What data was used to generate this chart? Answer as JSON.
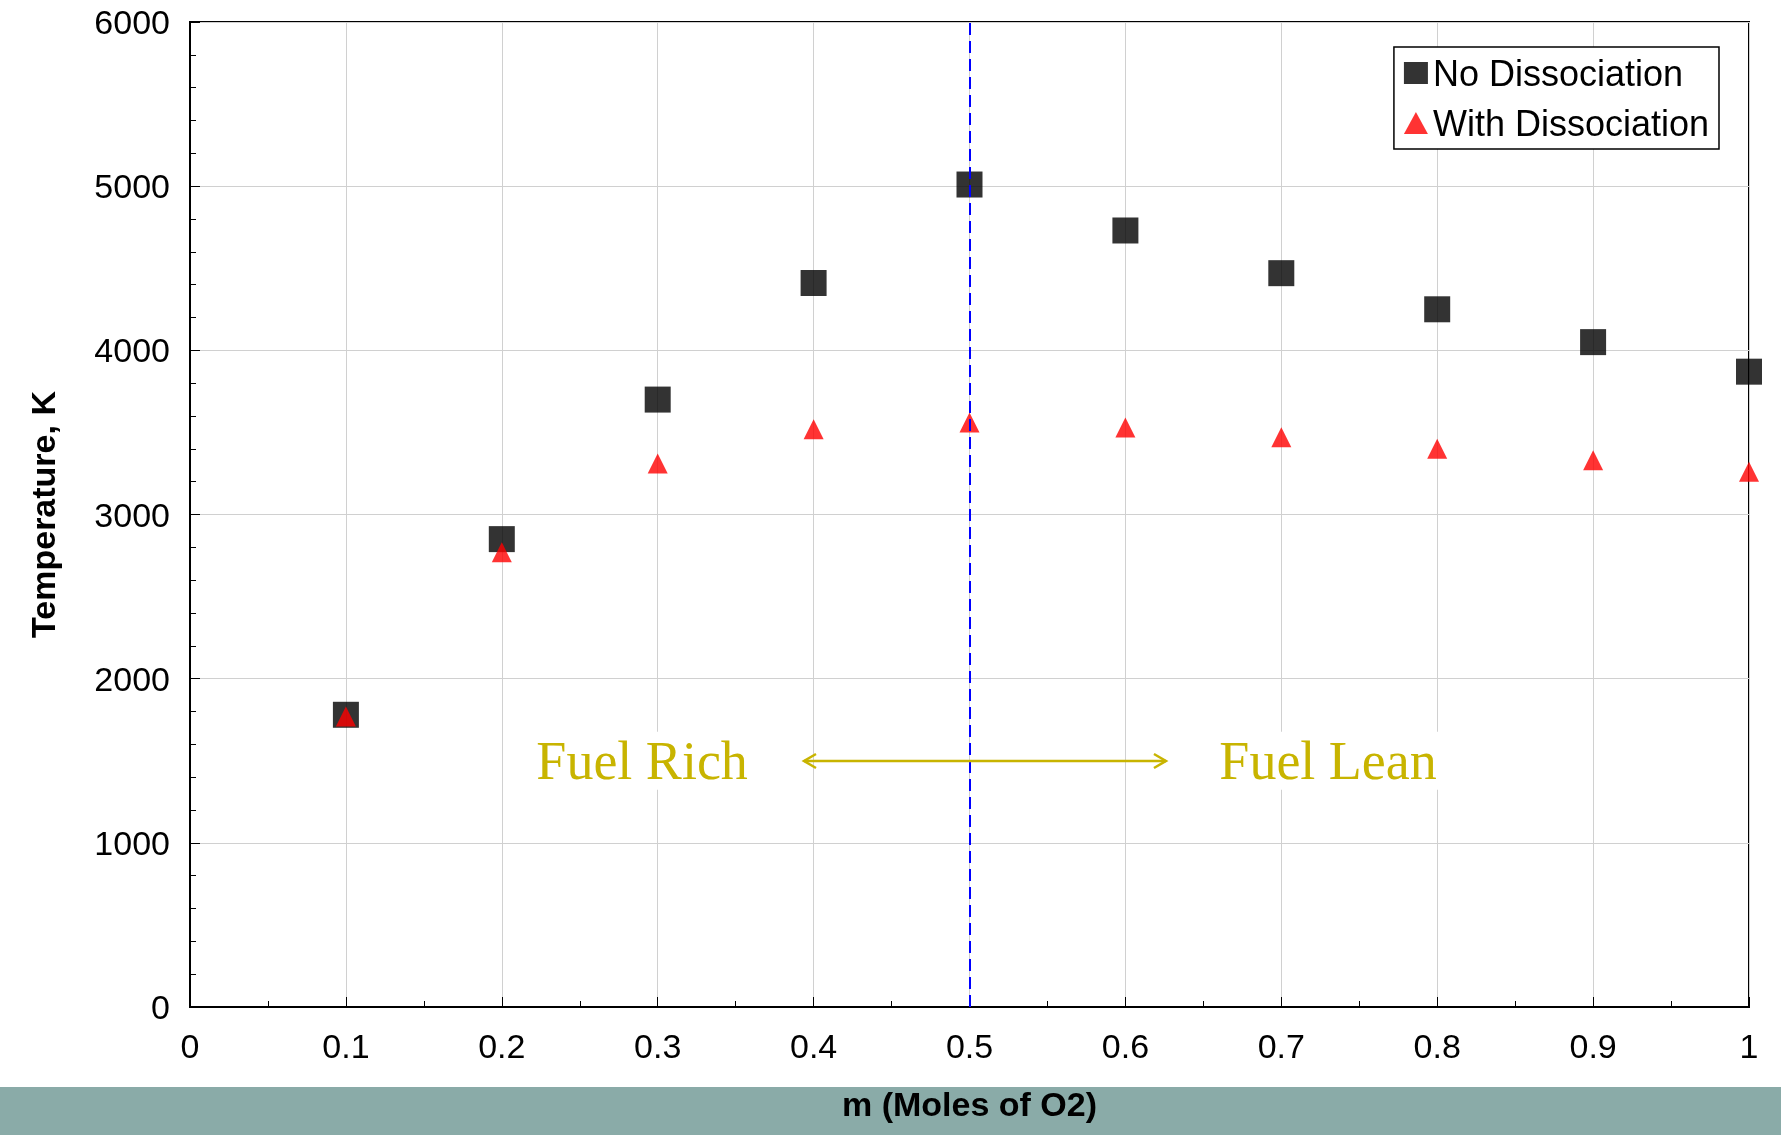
{
  "chart_data": {
    "type": "scatter",
    "xlabel": "m (Moles of O2)",
    "ylabel": "Temperature, K",
    "x": [
      0.1,
      0.2,
      0.3,
      0.4,
      0.5,
      0.6,
      0.7,
      0.8,
      0.9,
      1.0
    ],
    "series": [
      {
        "name": "No Dissociation",
        "color": "#000000",
        "marker": "square",
        "values": [
          1780,
          2850,
          3700,
          4410,
          5010,
          4730,
          4470,
          4250,
          4050,
          3870
        ]
      },
      {
        "name": "With Dissociation",
        "color": "#ff0000",
        "marker": "triangle",
        "values": [
          1770,
          2770,
          3310,
          3520,
          3560,
          3530,
          3470,
          3400,
          3330,
          3260
        ]
      }
    ],
    "xlim": [
      0,
      1
    ],
    "xticks": [
      0,
      0.1,
      0.2,
      0.3,
      0.4,
      0.5,
      0.6,
      0.7,
      0.8,
      0.9,
      1
    ],
    "ylim": [
      0,
      6000
    ],
    "yticks": [
      0,
      1000,
      2000,
      3000,
      4000,
      5000,
      6000
    ],
    "grid": true,
    "legend": "top right",
    "ref_lines": [
      {
        "axis": "x",
        "value": 0.5,
        "color": "#0000ff",
        "line_style": "dashed"
      }
    ],
    "annotations": [
      "Fuel Rich",
      "Fuel Lean"
    ]
  }
}
